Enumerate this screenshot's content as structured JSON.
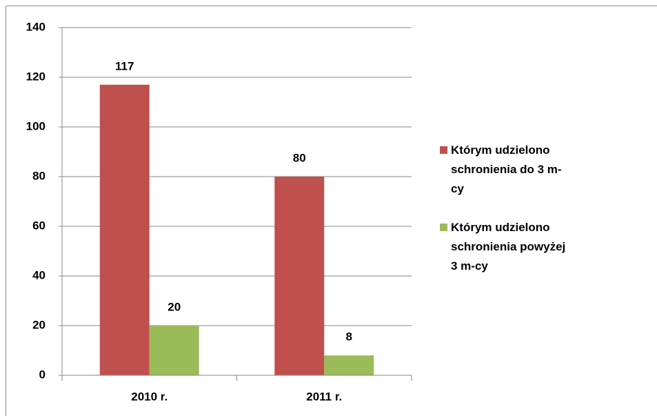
{
  "chart_data": {
    "type": "bar",
    "categories": [
      "2010 r.",
      "2011 r."
    ],
    "series": [
      {
        "name": "Którym udzielono schronienia do 3 m-cy",
        "color": "#c0504d",
        "values": [
          117,
          80
        ]
      },
      {
        "name": "Którym udzielono schronienia powyżej 3 m-cy",
        "color": "#9bbb59",
        "values": [
          20,
          8
        ]
      }
    ],
    "ylim": [
      0,
      140
    ],
    "yticks": [
      0,
      20,
      40,
      60,
      80,
      100,
      120,
      140
    ],
    "grid": true,
    "legend": "right"
  }
}
